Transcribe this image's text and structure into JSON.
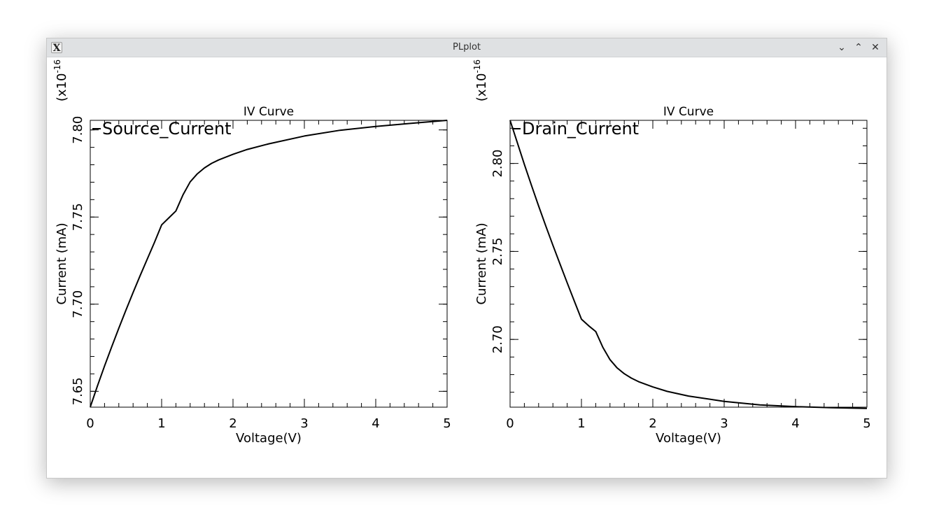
{
  "window": {
    "title": "PLplot",
    "icon": "x-app-icon",
    "controls": {
      "minimize": "⌄",
      "maximize": "⌃",
      "close": "✕"
    }
  },
  "colors": {
    "line": "#000000",
    "background": "#ffffff"
  },
  "chart_data": [
    {
      "type": "line",
      "title": "IV Curve",
      "xlabel": "Voltage(V)",
      "ylabel": "Current (mA)",
      "y_exponent_label": "(x10",
      "y_exponent_power": "-16",
      "y_exponent_close": ")",
      "xlim": [
        0,
        5
      ],
      "ylim": [
        7.6409,
        7.8055
      ],
      "x_ticks": [
        0,
        1,
        2,
        3,
        4,
        5
      ],
      "x_tick_labels": [
        "0",
        "1",
        "2",
        "3",
        "4",
        "5"
      ],
      "x_minor_step": 0.2,
      "y_ticks": [
        7.65,
        7.7,
        7.75,
        7.8
      ],
      "y_tick_labels": [
        "7.65",
        "7.70",
        "7.75",
        "7.80"
      ],
      "y_minor_step": 0.01,
      "grid": false,
      "legend_placement": "top-left",
      "series": [
        {
          "name": "Source_Current",
          "x": [
            0,
            0.1,
            0.2,
            0.3,
            0.4,
            0.5,
            0.6,
            0.7,
            0.8,
            0.9,
            1.0,
            1.1,
            1.2,
            1.3,
            1.4,
            1.5,
            1.6,
            1.7,
            1.8,
            2.0,
            2.2,
            2.5,
            3.0,
            3.5,
            4.0,
            4.5,
            5.0
          ],
          "y": [
            7.641,
            7.653,
            7.6645,
            7.6755,
            7.6862,
            7.6966,
            7.7067,
            7.7165,
            7.726,
            7.7355,
            7.7455,
            7.7495,
            7.7535,
            7.7628,
            7.7702,
            7.7748,
            7.7782,
            7.7808,
            7.7828,
            7.786,
            7.7888,
            7.792,
            7.7965,
            7.7998,
            7.802,
            7.8038,
            7.8055
          ]
        }
      ]
    },
    {
      "type": "line",
      "title": "IV Curve",
      "xlabel": "Voltage(V)",
      "ylabel": "Current (mA)",
      "y_exponent_label": "(x10",
      "y_exponent_power": "-16",
      "y_exponent_close": ")",
      "xlim": [
        0,
        5
      ],
      "ylim": [
        2.6615,
        2.8245
      ],
      "x_ticks": [
        0,
        1,
        2,
        3,
        4,
        5
      ],
      "x_tick_labels": [
        "0",
        "1",
        "2",
        "3",
        "4",
        "5"
      ],
      "x_minor_step": 0.2,
      "y_ticks": [
        2.7,
        2.75,
        2.8
      ],
      "y_tick_labels": [
        "2.70",
        "2.75",
        "2.80"
      ],
      "y_minor_step": 0.01,
      "grid": false,
      "legend_placement": "top-left",
      "series": [
        {
          "name": "Drain_Current",
          "x": [
            0,
            0.1,
            0.2,
            0.3,
            0.4,
            0.5,
            0.6,
            0.7,
            0.8,
            0.9,
            1.0,
            1.1,
            1.2,
            1.3,
            1.4,
            1.5,
            1.6,
            1.7,
            1.8,
            2.0,
            2.2,
            2.5,
            3.0,
            3.5,
            4.0,
            4.5,
            5.0
          ],
          "y": [
            2.8245,
            2.812,
            2.7995,
            2.7875,
            2.7758,
            2.7645,
            2.7535,
            2.7428,
            2.7322,
            2.7218,
            2.7115,
            2.7078,
            2.7045,
            2.6955,
            2.6885,
            2.6838,
            2.6805,
            2.678,
            2.676,
            2.673,
            2.6705,
            2.6678,
            2.6648,
            2.6628,
            2.6618,
            2.6612,
            2.6608
          ]
        }
      ]
    }
  ]
}
